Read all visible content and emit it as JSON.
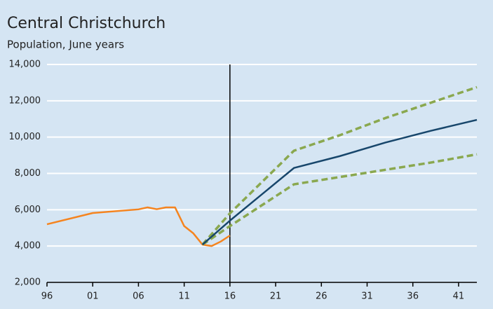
{
  "chart_data": {
    "type": "line",
    "title": "Central Christchurch",
    "subtitle": "Population, June years",
    "xlim": [
      1996,
      2043
    ],
    "ylim": [
      2000,
      14000
    ],
    "xticks": [
      {
        "value": 1996,
        "label": "96"
      },
      {
        "value": 2001,
        "label": "01"
      },
      {
        "value": 2006,
        "label": "06"
      },
      {
        "value": 2011,
        "label": "11"
      },
      {
        "value": 2016,
        "label": "16"
      },
      {
        "value": 2021,
        "label": "21"
      },
      {
        "value": 2026,
        "label": "26"
      },
      {
        "value": 2031,
        "label": "31"
      },
      {
        "value": 2036,
        "label": "36"
      },
      {
        "value": 2041,
        "label": "41"
      }
    ],
    "yticks": [
      {
        "value": 2000,
        "label": "2,000"
      },
      {
        "value": 4000,
        "label": "4,000"
      },
      {
        "value": 6000,
        "label": "6,000"
      },
      {
        "value": 8000,
        "label": "8,000"
      },
      {
        "value": 10000,
        "label": "10,000"
      },
      {
        "value": 12000,
        "label": "12,000"
      },
      {
        "value": 14000,
        "label": "14,000"
      }
    ],
    "grid": true,
    "vline": 2016,
    "series": [
      {
        "color": "#f5841f",
        "dash": false,
        "x": [
          1996,
          2001,
          2006,
          2007,
          2008,
          2009,
          2010,
          2011,
          2012,
          2013,
          2014,
          2015,
          2016
        ],
        "values": [
          5200,
          5820,
          6020,
          6130,
          6030,
          6130,
          6130,
          5100,
          4700,
          4080,
          4000,
          4250,
          4580
        ]
      },
      {
        "color": "#8aa84f",
        "dash": true,
        "x": [
          2013,
          2016,
          2023,
          2028,
          2033,
          2038,
          2043
        ],
        "values": [
          4080,
          5800,
          9250,
          10100,
          11050,
          11900,
          12750
        ]
      },
      {
        "color": "#8aa84f",
        "dash": true,
        "x": [
          2013,
          2016,
          2023,
          2028,
          2033,
          2038,
          2043
        ],
        "values": [
          4080,
          5100,
          7400,
          7800,
          8200,
          8600,
          9050
        ]
      },
      {
        "color": "#17466b",
        "dash": false,
        "x": [
          2013,
          2016,
          2023,
          2028,
          2033,
          2038,
          2043
        ],
        "values": [
          4080,
          5400,
          8300,
          8950,
          9700,
          10350,
          10950
        ]
      }
    ]
  }
}
